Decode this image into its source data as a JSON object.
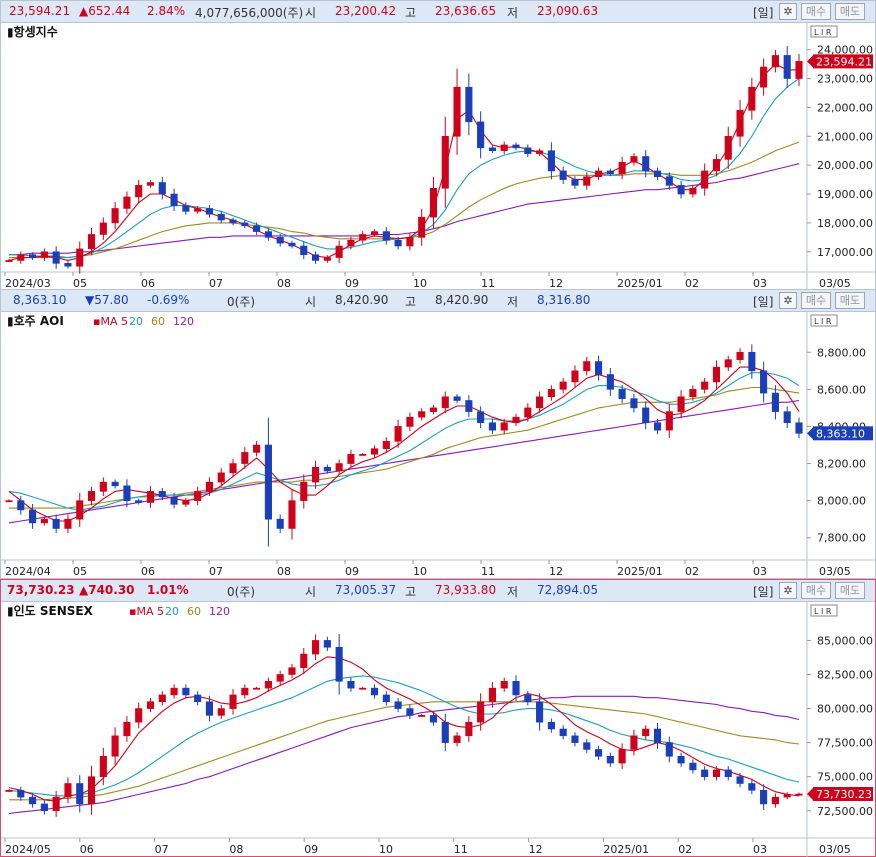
{
  "panels": [
    {
      "id": "hangseng",
      "info": {
        "price": "23,594.21",
        "change": "▲652.44",
        "pct": "2.84%",
        "volume": "4,077,656,000(주)",
        "open_label": "시",
        "open": "23,200.42",
        "high_label": "고",
        "high": "23,636.65",
        "low_label": "저",
        "low": "23,090.63",
        "period_btn": "[일]",
        "gear": "✲",
        "buy_btn": "매수",
        "sell_btn": "매도"
      },
      "title": "항셍지수",
      "ma_legend": [],
      "last_label": "23,594.21",
      "corner_label": "03/05",
      "lir": "L I R"
    },
    {
      "id": "aoi",
      "info": {
        "price": "8,363.10",
        "change": "▼57.80",
        "pct": "-0.69%",
        "volume": "0(주)",
        "open_label": "시",
        "open": "8,420.90",
        "high_label": "고",
        "high": "8,420.90",
        "low_label": "저",
        "low": "8,316.80",
        "period_btn": "[일]",
        "gear": "✲",
        "buy_btn": "매수",
        "sell_btn": "매도"
      },
      "title": "호주 AOI",
      "ma_legend": [
        {
          "text": "MA 5",
          "color": "#d0021b"
        },
        {
          "text": "20",
          "color": "#1aa0c0"
        },
        {
          "text": "60",
          "color": "#a08a20"
        },
        {
          "text": "120",
          "color": "#8a1ab8"
        }
      ],
      "last_label": "8,363.10",
      "corner_label": "03/05",
      "lir": "L I R"
    },
    {
      "id": "sensex",
      "info": {
        "price": "73,730.23",
        "change": "▲740.30",
        "pct": "1.01%",
        "volume": "0(주)",
        "open_label": "시",
        "open": "73,005.37",
        "high_label": "고",
        "high": "73,933.80",
        "low_label": "저",
        "low": "72,894.05",
        "period_btn": "[일]",
        "gear": "✲",
        "buy_btn": "매수",
        "sell_btn": "매도"
      },
      "title": "인도 SENSEX",
      "ma_legend": [
        {
          "text": "MA 5",
          "color": "#d0021b"
        },
        {
          "text": "20",
          "color": "#1aa0c0"
        },
        {
          "text": "60",
          "color": "#a08a20"
        },
        {
          "text": "120",
          "color": "#8a1ab8"
        }
      ],
      "last_label": "73,730.23",
      "corner_label": "03/05",
      "lir": "L I R"
    }
  ],
  "colors": {
    "up": "#d0021b",
    "down": "#1a3fb8",
    "ma5": "#d0021b",
    "ma20": "#1aa0c0",
    "ma60": "#a08a20",
    "ma120": "#8a1ab8",
    "price_box": "#d0021b",
    "price_box_down": "#1a3fb8"
  },
  "chart_data": [
    {
      "type": "candlestick",
      "title": "항셍지수",
      "y_ticks": [
        17000,
        18000,
        19000,
        20000,
        21000,
        22000,
        23000,
        24000
      ],
      "ylim": [
        16300,
        24300
      ],
      "x_tick_labels": [
        "2024/03",
        "05",
        "06",
        "07",
        "08",
        "09",
        "10",
        "11",
        "12",
        "2025/01",
        "02",
        "03"
      ],
      "close_series": [
        16700,
        16900,
        16800,
        17000,
        16600,
        16500,
        17100,
        17600,
        18000,
        18500,
        18900,
        19300,
        19400,
        19000,
        18600,
        18400,
        18500,
        18300,
        18100,
        18000,
        17900,
        17700,
        17500,
        17300,
        17200,
        16900,
        16700,
        16800,
        17200,
        17400,
        17600,
        17700,
        17400,
        17200,
        17500,
        18200,
        19200,
        21000,
        22700,
        21500,
        20600,
        20500,
        20700,
        20600,
        20400,
        20500,
        19800,
        19500,
        19300,
        19600,
        19800,
        19700,
        20100,
        20300,
        19800,
        19600,
        19300,
        19000,
        19200,
        19800,
        20200,
        21000,
        21900,
        22700,
        23400,
        23800,
        23000,
        23594
      ],
      "ma5": [
        16700,
        16800,
        16800,
        16850,
        16800,
        16700,
        16800,
        17000,
        17300,
        17700,
        18200,
        18700,
        19000,
        19000,
        18800,
        18600,
        18500,
        18350,
        18200,
        18100,
        17950,
        17750,
        17550,
        17400,
        17250,
        17050,
        16850,
        16800,
        17000,
        17250,
        17450,
        17550,
        17500,
        17450,
        17500,
        17800,
        18500,
        19900,
        21600,
        21900,
        21200,
        20700,
        20600,
        20650,
        20550,
        20450,
        20100,
        19700,
        19500,
        19500,
        19700,
        19750,
        19950,
        20150,
        19950,
        19700,
        19450,
        19150,
        19150,
        19500,
        19950,
        20600,
        21500,
        22400,
        23100,
        23500,
        23300,
        23300
      ],
      "ma20": [
        16900,
        16900,
        16850,
        16850,
        16850,
        16800,
        16850,
        16950,
        17150,
        17400,
        17700,
        18000,
        18300,
        18500,
        18600,
        18600,
        18550,
        18500,
        18400,
        18250,
        18100,
        17950,
        17800,
        17650,
        17500,
        17350,
        17200,
        17100,
        17100,
        17150,
        17250,
        17350,
        17400,
        17450,
        17500,
        17650,
        17950,
        18450,
        19150,
        19700,
        20000,
        20200,
        20350,
        20450,
        20500,
        20450,
        20350,
        20150,
        19950,
        19800,
        19700,
        19650,
        19700,
        19800,
        19800,
        19750,
        19650,
        19500,
        19450,
        19500,
        19650,
        19950,
        20400,
        21000,
        21700,
        22300,
        22700,
        23000
      ],
      "ma60": [
        16800,
        16800,
        16800,
        16800,
        16800,
        16800,
        16850,
        16900,
        17000,
        17100,
        17250,
        17400,
        17550,
        17700,
        17800,
        17900,
        17950,
        18000,
        18000,
        18000,
        17950,
        17900,
        17850,
        17800,
        17700,
        17650,
        17550,
        17500,
        17450,
        17450,
        17450,
        17450,
        17450,
        17450,
        17500,
        17550,
        17700,
        17950,
        18250,
        18550,
        18800,
        19000,
        19200,
        19350,
        19450,
        19550,
        19600,
        19650,
        19650,
        19650,
        19650,
        19650,
        19650,
        19700,
        19700,
        19700,
        19700,
        19650,
        19650,
        19650,
        19700,
        19800,
        19950,
        20100,
        20300,
        20500,
        20650,
        20800
      ],
      "ma120": [
        16900,
        16900,
        16950,
        16950,
        16950,
        16950,
        17000,
        17000,
        17050,
        17100,
        17150,
        17200,
        17250,
        17300,
        17350,
        17400,
        17450,
        17500,
        17500,
        17550,
        17550,
        17550,
        17550,
        17550,
        17550,
        17550,
        17550,
        17550,
        17550,
        17550,
        17550,
        17600,
        17600,
        17600,
        17650,
        17700,
        17800,
        17900,
        18050,
        18150,
        18250,
        18350,
        18450,
        18550,
        18650,
        18700,
        18750,
        18800,
        18850,
        18900,
        18950,
        19000,
        19050,
        19100,
        19150,
        19150,
        19200,
        19250,
        19300,
        19350,
        19400,
        19500,
        19550,
        19650,
        19750,
        19850,
        19950,
        20050
      ]
    },
    {
      "type": "candlestick",
      "title": "호주 AOI",
      "y_ticks": [
        7800,
        8000,
        8200,
        8400,
        8600,
        8800
      ],
      "ylim": [
        7680,
        8920
      ],
      "x_tick_labels": [
        "2024/04",
        "05",
        "06",
        "07",
        "08",
        "09",
        "10",
        "11",
        "12",
        "2025/01",
        "02",
        "03"
      ],
      "close_series": [
        8000,
        7950,
        7880,
        7900,
        7850,
        7900,
        8000,
        8050,
        8100,
        8080,
        8000,
        7990,
        8050,
        8020,
        7980,
        8000,
        8050,
        8100,
        8150,
        8200,
        8260,
        8300,
        7900,
        7850,
        8000,
        8100,
        8180,
        8160,
        8200,
        8250,
        8250,
        8280,
        8320,
        8400,
        8450,
        8480,
        8500,
        8560,
        8540,
        8480,
        8420,
        8380,
        8420,
        8450,
        8500,
        8560,
        8600,
        8640,
        8700,
        8750,
        8680,
        8600,
        8550,
        8500,
        8420,
        8380,
        8480,
        8560,
        8600,
        8640,
        8720,
        8760,
        8800,
        8700,
        8580,
        8480,
        8420,
        8363
      ],
      "ma5": [
        8050,
        8000,
        7950,
        7920,
        7890,
        7890,
        7920,
        7960,
        8010,
        8050,
        8060,
        8050,
        8040,
        8030,
        8010,
        8000,
        8010,
        8040,
        8080,
        8130,
        8180,
        8230,
        8170,
        8100,
        8060,
        8030,
        8030,
        8080,
        8140,
        8180,
        8210,
        8230,
        8260,
        8300,
        8350,
        8400,
        8440,
        8480,
        8510,
        8510,
        8480,
        8450,
        8430,
        8420,
        8440,
        8480,
        8520,
        8560,
        8610,
        8660,
        8680,
        8660,
        8640,
        8600,
        8550,
        8490,
        8460,
        8470,
        8500,
        8540,
        8600,
        8660,
        8720,
        8720,
        8700,
        8650,
        8580,
        8480
      ],
      "ma20": [
        8050,
        8040,
        8020,
        8000,
        7980,
        7960,
        7950,
        7960,
        7970,
        7990,
        8010,
        8020,
        8030,
        8030,
        8030,
        8030,
        8030,
        8040,
        8060,
        8090,
        8120,
        8150,
        8130,
        8110,
        8090,
        8080,
        8080,
        8090,
        8110,
        8140,
        8160,
        8180,
        8210,
        8240,
        8270,
        8310,
        8350,
        8390,
        8420,
        8440,
        8440,
        8440,
        8430,
        8430,
        8440,
        8460,
        8490,
        8520,
        8560,
        8600,
        8620,
        8620,
        8610,
        8590,
        8570,
        8540,
        8520,
        8520,
        8530,
        8550,
        8580,
        8620,
        8660,
        8690,
        8690,
        8680,
        8660,
        8620
      ],
      "ma60": [
        7960,
        7960,
        7960,
        7960,
        7960,
        7960,
        7970,
        7980,
        7990,
        8000,
        8010,
        8020,
        8020,
        8030,
        8030,
        8040,
        8050,
        8060,
        8070,
        8080,
        8090,
        8100,
        8100,
        8100,
        8100,
        8110,
        8110,
        8120,
        8130,
        8140,
        8150,
        8160,
        8170,
        8190,
        8210,
        8230,
        8250,
        8280,
        8300,
        8320,
        8340,
        8350,
        8360,
        8370,
        8380,
        8400,
        8420,
        8440,
        8460,
        8480,
        8500,
        8510,
        8520,
        8530,
        8530,
        8530,
        8530,
        8540,
        8550,
        8560,
        8570,
        8590,
        8600,
        8610,
        8610,
        8600,
        8590,
        8580
      ],
      "ma120": [
        7880,
        7890,
        7900,
        7910,
        7920,
        7930,
        7940,
        7950,
        7960,
        7970,
        7980,
        7990,
        8000,
        8010,
        8020,
        8030,
        8040,
        8050,
        8060,
        8070,
        8080,
        8090,
        8100,
        8110,
        8120,
        8130,
        8140,
        8150,
        8160,
        8170,
        8180,
        8190,
        8200,
        8210,
        8220,
        8230,
        8240,
        8250,
        8260,
        8270,
        8280,
        8290,
        8300,
        8310,
        8320,
        8330,
        8340,
        8350,
        8360,
        8370,
        8380,
        8390,
        8400,
        8410,
        8420,
        8430,
        8440,
        8450,
        8460,
        8470,
        8480,
        8490,
        8500,
        8510,
        8520,
        8530,
        8530,
        8540
      ]
    },
    {
      "type": "candlestick",
      "title": "인도 SENSEX",
      "y_ticks": [
        72500,
        75000,
        77500,
        80000,
        82500,
        85000
      ],
      "ylim": [
        70500,
        86500
      ],
      "x_tick_labels": [
        "2024/05",
        "06",
        "07",
        "08",
        "09",
        "10",
        "11",
        "12",
        "2025/01",
        "02",
        "03"
      ],
      "close_series": [
        74000,
        73500,
        73000,
        72500,
        73500,
        74500,
        73000,
        75000,
        76500,
        78000,
        79000,
        80000,
        80500,
        81000,
        81500,
        81000,
        80500,
        79500,
        80000,
        81000,
        81500,
        81500,
        82000,
        82500,
        83000,
        84000,
        85000,
        84500,
        82000,
        81500,
        81500,
        81000,
        80500,
        80000,
        79500,
        79500,
        79000,
        77500,
        78000,
        79000,
        80500,
        81500,
        82000,
        81000,
        80500,
        79000,
        78500,
        78000,
        77500,
        77000,
        76500,
        76000,
        77000,
        78000,
        78500,
        77500,
        76500,
        76000,
        75500,
        75000,
        75500,
        75000,
        74500,
        74000,
        73000,
        73500,
        73700,
        73730
      ],
      "ma5": [
        74200,
        74000,
        73700,
        73300,
        73200,
        73600,
        73700,
        74100,
        74900,
        75800,
        77000,
        78200,
        79000,
        79800,
        80400,
        80800,
        80900,
        80700,
        80400,
        80300,
        80500,
        80800,
        81300,
        81700,
        82100,
        82600,
        83300,
        83800,
        83700,
        83400,
        82900,
        82100,
        81500,
        81100,
        80700,
        80200,
        79700,
        79000,
        78700,
        78600,
        78800,
        79300,
        80200,
        80800,
        81100,
        80900,
        80300,
        79600,
        78800,
        78300,
        77900,
        77400,
        77000,
        76900,
        77200,
        77500,
        77300,
        76900,
        76400,
        75900,
        75600,
        75400,
        75100,
        74800,
        74300,
        73900,
        73700,
        73600
      ],
      "ma20": [
        74000,
        73900,
        73800,
        73700,
        73600,
        73600,
        73700,
        73800,
        74100,
        74400,
        74800,
        75300,
        75900,
        76500,
        77100,
        77700,
        78200,
        78600,
        79000,
        79300,
        79600,
        79900,
        80200,
        80500,
        80800,
        81200,
        81600,
        82000,
        82200,
        82300,
        82400,
        82300,
        82100,
        81900,
        81600,
        81300,
        80900,
        80500,
        80100,
        79800,
        79600,
        79600,
        79700,
        79900,
        80000,
        80000,
        79900,
        79700,
        79400,
        79100,
        78800,
        78400,
        78100,
        77900,
        77700,
        77600,
        77500,
        77300,
        77100,
        76800,
        76500,
        76300,
        76000,
        75700,
        75400,
        75100,
        74800,
        74600
      ],
      "ma60": [
        73300,
        73300,
        73300,
        73300,
        73400,
        73400,
        73500,
        73600,
        73700,
        73900,
        74100,
        74300,
        74600,
        74900,
        75200,
        75500,
        75800,
        76100,
        76400,
        76700,
        77000,
        77300,
        77600,
        77900,
        78200,
        78500,
        78800,
        79100,
        79300,
        79500,
        79700,
        79900,
        80100,
        80200,
        80300,
        80400,
        80500,
        80500,
        80500,
        80500,
        80500,
        80500,
        80500,
        80500,
        80500,
        80500,
        80400,
        80300,
        80200,
        80100,
        80000,
        79900,
        79800,
        79700,
        79600,
        79400,
        79200,
        79000,
        78800,
        78600,
        78400,
        78200,
        78000,
        77900,
        77800,
        77700,
        77500,
        77400
      ],
      "ma120": [
        72300,
        72400,
        72500,
        72600,
        72700,
        72800,
        72900,
        73000,
        73100,
        73300,
        73500,
        73700,
        73900,
        74100,
        74300,
        74500,
        74800,
        75000,
        75300,
        75600,
        75900,
        76200,
        76500,
        76800,
        77100,
        77400,
        77700,
        78000,
        78300,
        78600,
        78800,
        79000,
        79200,
        79400,
        79500,
        79700,
        79800,
        79900,
        80000,
        80100,
        80200,
        80300,
        80400,
        80500,
        80600,
        80700,
        80800,
        80800,
        80900,
        80900,
        80900,
        80900,
        80900,
        80900,
        80800,
        80800,
        80700,
        80600,
        80500,
        80400,
        80300,
        80100,
        80000,
        79800,
        79700,
        79500,
        79400,
        79200
      ]
    }
  ]
}
